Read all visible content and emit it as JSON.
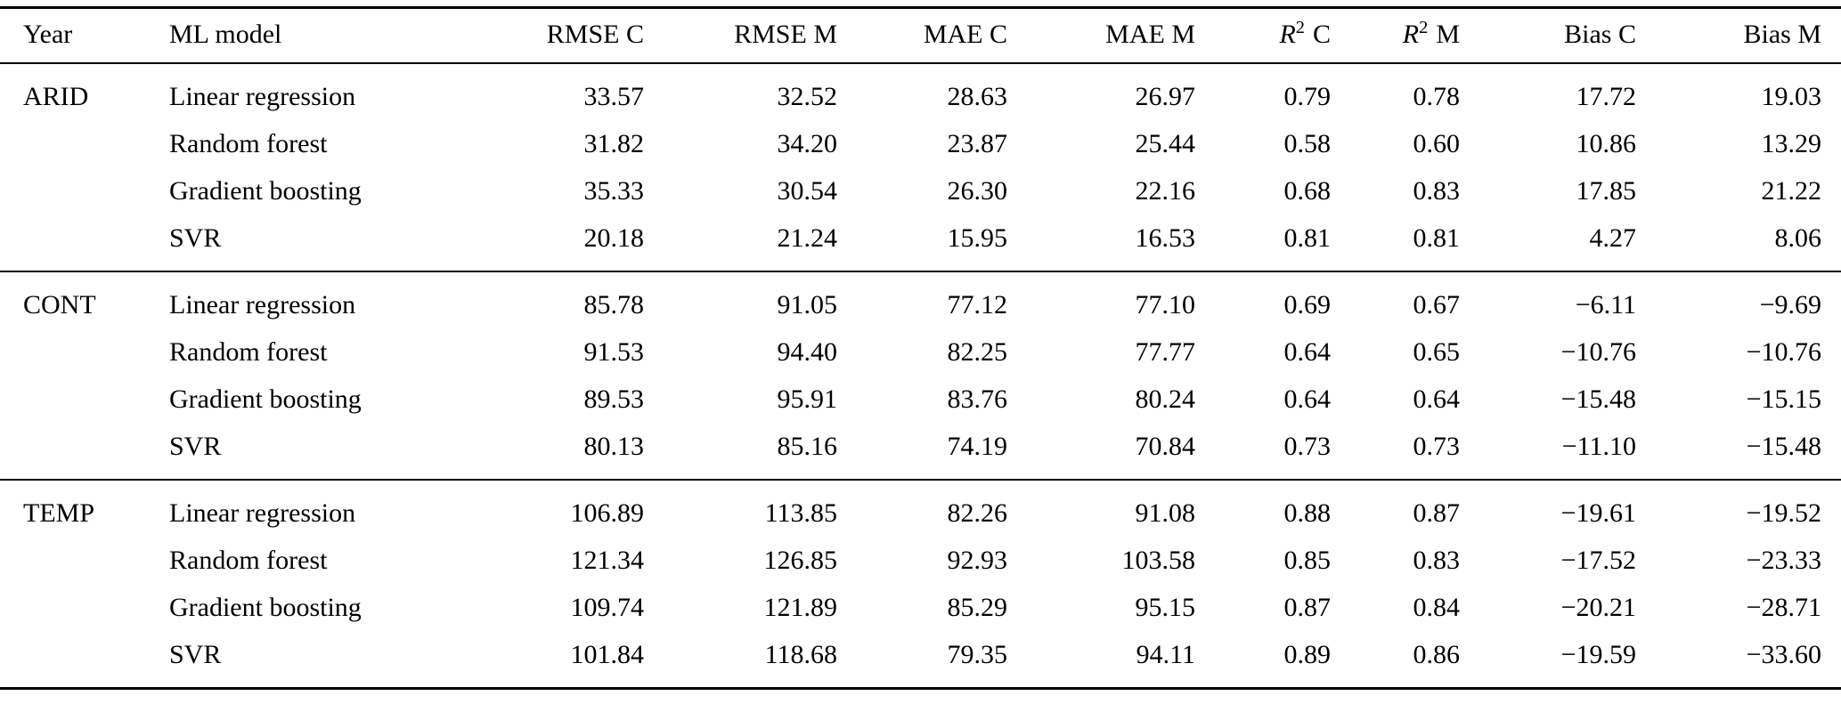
{
  "table": {
    "columns": [
      {
        "label": "Year"
      },
      {
        "label": "ML model"
      },
      {
        "label": "RMSE C"
      },
      {
        "label": "RMSE M"
      },
      {
        "label": "MAE C"
      },
      {
        "label": "MAE M"
      },
      {
        "label": "R",
        "sup": "2",
        "suffix": "C"
      },
      {
        "label": "R",
        "sup": "2",
        "suffix": "M"
      },
      {
        "label": "Bias C"
      },
      {
        "label": "Bias M"
      }
    ],
    "groups": [
      {
        "year": "ARID",
        "rows": [
          {
            "model": "Linear regression",
            "cells": [
              "33.57",
              "32.52",
              "28.63",
              "26.97",
              "0.79",
              "0.78",
              "17.72",
              "19.03"
            ]
          },
          {
            "model": "Random forest",
            "cells": [
              "31.82",
              "34.20",
              "23.87",
              "25.44",
              "0.58",
              "0.60",
              "10.86",
              "13.29"
            ]
          },
          {
            "model": "Gradient boosting",
            "cells": [
              "35.33",
              "30.54",
              "26.30",
              "22.16",
              "0.68",
              "0.83",
              "17.85",
              "21.22"
            ]
          },
          {
            "model": "SVR",
            "cells": [
              "20.18",
              "21.24",
              "15.95",
              "16.53",
              "0.81",
              "0.81",
              "4.27",
              "8.06"
            ]
          }
        ]
      },
      {
        "year": "CONT",
        "rows": [
          {
            "model": "Linear regression",
            "cells": [
              "85.78",
              "91.05",
              "77.12",
              "77.10",
              "0.69",
              "0.67",
              "−6.11",
              "−9.69"
            ]
          },
          {
            "model": "Random forest",
            "cells": [
              "91.53",
              "94.40",
              "82.25",
              "77.77",
              "0.64",
              "0.65",
              "−10.76",
              "−10.76"
            ]
          },
          {
            "model": "Gradient boosting",
            "cells": [
              "89.53",
              "95.91",
              "83.76",
              "80.24",
              "0.64",
              "0.64",
              "−15.48",
              "−15.15"
            ]
          },
          {
            "model": "SVR",
            "cells": [
              "80.13",
              "85.16",
              "74.19",
              "70.84",
              "0.73",
              "0.73",
              "−11.10",
              "−15.48"
            ]
          }
        ]
      },
      {
        "year": "TEMP",
        "rows": [
          {
            "model": "Linear regression",
            "cells": [
              "106.89",
              "113.85",
              "82.26",
              "91.08",
              "0.88",
              "0.87",
              "−19.61",
              "−19.52"
            ]
          },
          {
            "model": "Random forest",
            "cells": [
              "121.34",
              "126.85",
              "92.93",
              "103.58",
              "0.85",
              "0.83",
              "−17.52",
              "−23.33"
            ]
          },
          {
            "model": "Gradient boosting",
            "cells": [
              "109.74",
              "121.89",
              "85.29",
              "95.15",
              "0.87",
              "0.84",
              "−20.21",
              "−28.71"
            ]
          },
          {
            "model": "SVR",
            "cells": [
              "101.84",
              "118.68",
              "79.35",
              "94.11",
              "0.89",
              "0.86",
              "−19.59",
              "−33.60"
            ]
          }
        ]
      }
    ]
  }
}
